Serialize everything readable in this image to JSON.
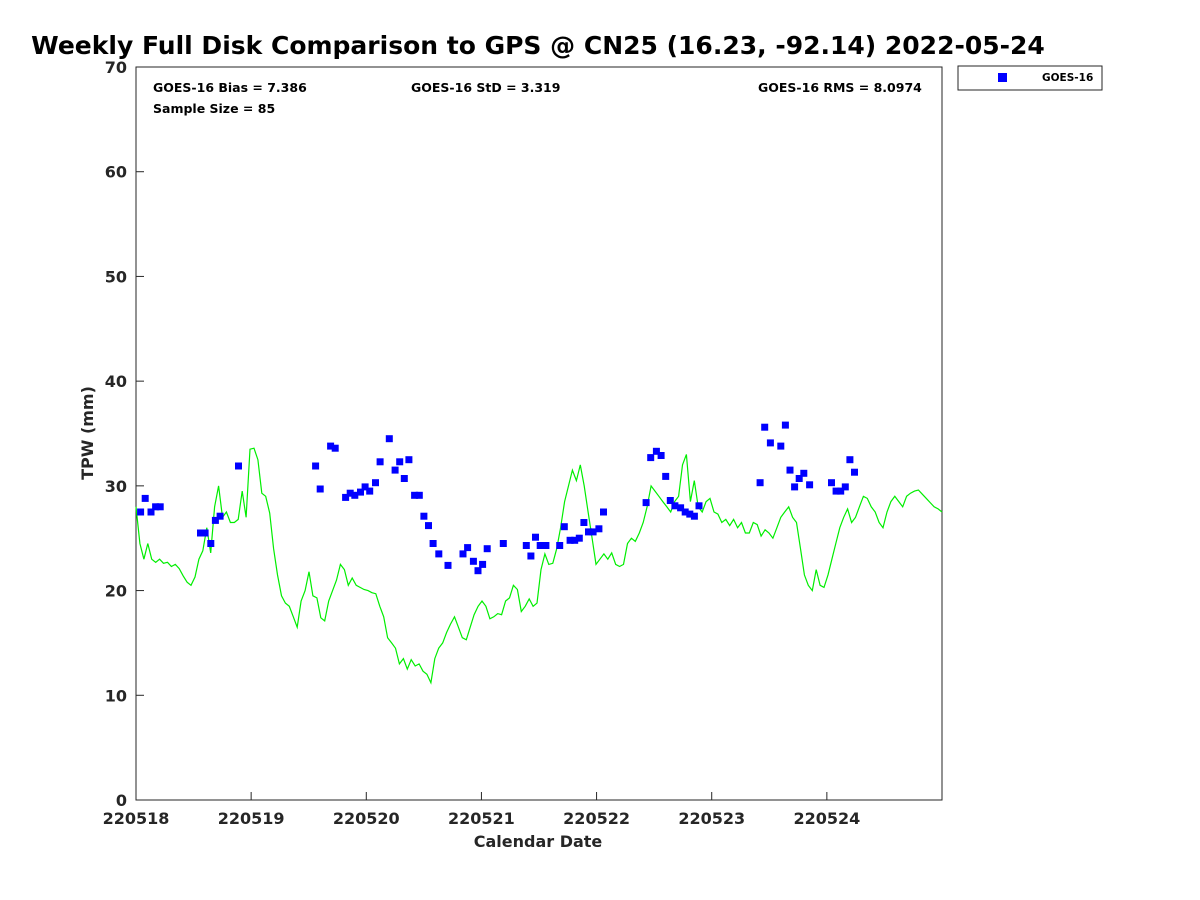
{
  "chart_data": {
    "type": "scatter",
    "title": "Weekly Full Disk Comparison to GPS @ CN25 (16.23, -92.14) 2022-05-24",
    "xlabel": "Calendar Date",
    "ylabel": "TPW (mm)",
    "xlim": [
      220518,
      220525
    ],
    "ylim": [
      0,
      70
    ],
    "xticks": [
      220518,
      220519,
      220520,
      220521,
      220522,
      220523,
      220524
    ],
    "xtick_labels": [
      "220518",
      "220519",
      "220520",
      "220521",
      "220522",
      "220523",
      "220524"
    ],
    "yticks": [
      0,
      10,
      20,
      30,
      40,
      50,
      60,
      70
    ],
    "ytick_labels": [
      "0",
      "10",
      "20",
      "30",
      "40",
      "50",
      "60",
      "70"
    ],
    "grid": false,
    "legend": {
      "position": "top-right",
      "entries": [
        "GOES-16"
      ]
    },
    "stats": {
      "bias": "GOES-16 Bias = 7.386",
      "std": "GOES-16 StD = 3.319",
      "rms": "GOES-16 RMS = 8.0974",
      "sample_size": "Sample Size = 85"
    },
    "series": [
      {
        "name": "GOES-16",
        "kind": "scatter",
        "color": "#0000ff",
        "x": [
          220518.04,
          220518.08,
          220518.13,
          220518.17,
          220518.21,
          220518.56,
          220518.6,
          220518.65,
          220518.69,
          220518.73,
          220518.89,
          220519.56,
          220519.6,
          220519.69,
          220519.73,
          220519.82,
          220519.86,
          220519.9,
          220519.95,
          220519.99,
          220520.03,
          220520.08,
          220520.12,
          220520.2,
          220520.25,
          220520.29,
          220520.33,
          220520.37,
          220520.42,
          220520.46,
          220520.5,
          220520.54,
          220520.58,
          220520.63,
          220520.71,
          220520.84,
          220520.88,
          220520.93,
          220520.97,
          220521.01,
          220521.05,
          220521.19,
          220521.39,
          220521.43,
          220521.47,
          220521.51,
          220521.56,
          220521.68,
          220521.72,
          220521.77,
          220521.81,
          220521.85,
          220521.89,
          220521.93,
          220521.97,
          220522.02,
          220522.06,
          220522.43,
          220522.47,
          220522.52,
          220522.56,
          220522.6,
          220522.64,
          220522.68,
          220522.73,
          220522.77,
          220522.81,
          220522.85,
          220522.89,
          220523.42,
          220523.46,
          220523.51,
          220523.6,
          220523.64,
          220523.68,
          220523.72,
          220523.76,
          220523.8,
          220523.85,
          220524.04,
          220524.08,
          220524.12,
          220524.16,
          220524.2,
          220524.24
        ],
        "y": [
          27.5,
          28.8,
          27.5,
          28.0,
          28.0,
          25.5,
          25.5,
          24.5,
          26.7,
          27.1,
          31.9,
          31.9,
          29.7,
          33.8,
          33.6,
          28.9,
          29.3,
          29.1,
          29.4,
          29.9,
          29.5,
          30.3,
          32.3,
          34.5,
          31.5,
          32.3,
          30.7,
          32.5,
          29.1,
          29.1,
          27.1,
          26.2,
          24.5,
          23.5,
          22.4,
          23.5,
          24.1,
          22.8,
          21.9,
          22.5,
          24.0,
          24.5,
          24.3,
          23.3,
          25.1,
          24.3,
          24.3,
          24.3,
          26.1,
          24.8,
          24.8,
          25.0,
          26.5,
          25.6,
          25.6,
          25.9,
          27.5,
          28.4,
          32.7,
          33.3,
          32.9,
          30.9,
          28.6,
          28.1,
          27.9,
          27.5,
          27.3,
          27.1,
          28.1,
          30.3,
          35.6,
          34.1,
          33.8,
          35.8,
          31.5,
          29.9,
          30.7,
          31.2,
          30.1,
          30.3,
          29.5,
          29.5,
          29.9,
          32.5,
          31.3
        ]
      },
      {
        "name": "",
        "kind": "line",
        "color": "#00ee00",
        "x_start": 220518.0,
        "x_end": 220525.0,
        "y": [
          28.0,
          24.5,
          23.0,
          24.5,
          23.0,
          22.7,
          23.0,
          22.6,
          22.7,
          22.3,
          22.5,
          22.1,
          21.4,
          20.8,
          20.5,
          21.3,
          23.0,
          23.8,
          26.0,
          23.6,
          28.0,
          30.0,
          27.0,
          27.5,
          26.5,
          26.5,
          26.8,
          29.5,
          27.0,
          33.5,
          33.6,
          32.5,
          29.3,
          29.0,
          27.4,
          24.0,
          21.5,
          19.5,
          18.8,
          18.5,
          17.5,
          16.5,
          19.0,
          20.0,
          21.8,
          19.5,
          19.3,
          17.4,
          17.1,
          19.0,
          20.0,
          21.0,
          22.5,
          22.0,
          20.5,
          21.2,
          20.5,
          20.3,
          20.1,
          20.0,
          19.8,
          19.7,
          18.5,
          17.5,
          15.5,
          15.0,
          14.5,
          13.0,
          13.5,
          12.5,
          13.4,
          12.8,
          13.0,
          12.3,
          12.0,
          11.2,
          13.5,
          14.5,
          15.0,
          16.0,
          16.8,
          17.5,
          16.5,
          15.5,
          15.3,
          16.5,
          17.7,
          18.5,
          19.0,
          18.5,
          17.3,
          17.5,
          17.8,
          17.7,
          19.0,
          19.3,
          20.5,
          20.1,
          18.0,
          18.5,
          19.2,
          18.5,
          18.8,
          22.0,
          23.5,
          22.5,
          22.6,
          24.0,
          26.0,
          28.5,
          30.0,
          31.5,
          30.5,
          32.0,
          30.0,
          27.5,
          25.0,
          22.5,
          23.0,
          23.5,
          23.0,
          23.6,
          22.5,
          22.3,
          22.5,
          24.5,
          25.0,
          24.7,
          25.5,
          26.5,
          28.0,
          30.0,
          29.5,
          29.0,
          28.5,
          28.0,
          27.5,
          28.5,
          29.0,
          32.0,
          33.0,
          28.5,
          30.5,
          28.0,
          27.5,
          28.5,
          28.8,
          27.5,
          27.3,
          26.5,
          26.8,
          26.2,
          26.8,
          26.0,
          26.5,
          25.5,
          25.5,
          26.5,
          26.3,
          25.2,
          25.8,
          25.5,
          25.0,
          26.0,
          27.0,
          27.5,
          28.0,
          27.0,
          26.5,
          24.0,
          21.5,
          20.5,
          20.0,
          22.0,
          20.5,
          20.3,
          21.5,
          23.0,
          24.5,
          26.0,
          27.0,
          27.8,
          26.5,
          27.0,
          28.0,
          29.0,
          28.8,
          28.0,
          27.5,
          26.5,
          26.0,
          27.5,
          28.5,
          29.0,
          28.5,
          28.0,
          29.0,
          29.3,
          29.5,
          29.6,
          29.2,
          28.8,
          28.4,
          28.0,
          27.8,
          27.5
        ]
      }
    ]
  }
}
